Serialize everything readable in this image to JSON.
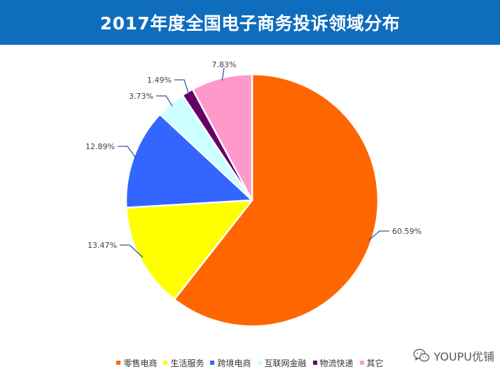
{
  "header": {
    "title": "2017年度全国电子商务投诉领域分布"
  },
  "chart_data": {
    "type": "pie",
    "title": "2017年度全国电子商务投诉领域分布",
    "slices": [
      {
        "label": "零售电商",
        "value": 60.59,
        "display": "60.59%",
        "color": "#ff6600"
      },
      {
        "label": "生活服务",
        "value": 13.47,
        "display": "13.47%",
        "color": "#ffff00"
      },
      {
        "label": "跨境电商",
        "value": 12.89,
        "display": "12.89%",
        "color": "#3366ff"
      },
      {
        "label": "互联网金融",
        "value": 3.73,
        "display": "3.73%",
        "color": "#ccffff"
      },
      {
        "label": "物流快递",
        "value": 1.49,
        "display": "1.49%",
        "color": "#660066"
      },
      {
        "label": "其它",
        "value": 7.83,
        "display": "7.83%",
        "color": "#ff99cc"
      }
    ],
    "legend_position": "bottom"
  },
  "watermark": {
    "text": "YOUPU优铺",
    "icon": "wechat-icon"
  }
}
